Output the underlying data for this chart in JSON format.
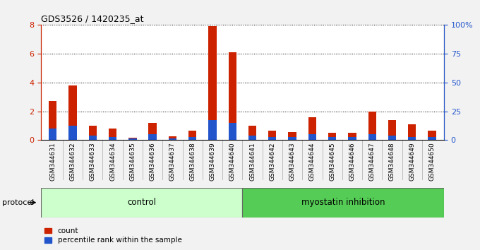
{
  "title": "GDS3526 / 1420235_at",
  "samples": [
    "GSM344631",
    "GSM344632",
    "GSM344633",
    "GSM344634",
    "GSM344635",
    "GSM344636",
    "GSM344637",
    "GSM344638",
    "GSM344639",
    "GSM344640",
    "GSM344641",
    "GSM344642",
    "GSM344643",
    "GSM344644",
    "GSM344645",
    "GSM344646",
    "GSM344647",
    "GSM344648",
    "GSM344649",
    "GSM344650"
  ],
  "count": [
    2.7,
    3.8,
    1.0,
    0.8,
    0.15,
    1.2,
    0.25,
    0.65,
    7.9,
    6.1,
    1.0,
    0.65,
    0.55,
    1.6,
    0.5,
    0.5,
    2.0,
    1.4,
    1.1,
    0.65
  ],
  "percentile": [
    0.8,
    1.0,
    0.3,
    0.2,
    0.1,
    0.4,
    0.1,
    0.2,
    1.4,
    1.2,
    0.3,
    0.2,
    0.2,
    0.4,
    0.2,
    0.2,
    0.4,
    0.3,
    0.2,
    0.2
  ],
  "count_color": "#cc2200",
  "percentile_color": "#2255cc",
  "control_count": 10,
  "myostatin_count": 10,
  "control_label": "control",
  "myostatin_label": "myostatin inhibition",
  "protocol_label": "protocol",
  "control_bg": "#ccffcc",
  "myostatin_bg": "#55cc55",
  "ylim_left": [
    0,
    8
  ],
  "yticks_left": [
    0,
    2,
    4,
    6,
    8
  ],
  "ylim_right": [
    0,
    100
  ],
  "yticks_right": [
    0,
    25,
    50,
    75,
    100
  ],
  "bar_width": 0.4,
  "fig_bg": "#f2f2f2",
  "plot_bg": "#ffffff",
  "xtick_bg": "#d0d0d0",
  "legend_count": "count",
  "legend_percentile": "percentile rank within the sample",
  "left_tick_color": "#cc2200",
  "right_tick_color": "#2255cc"
}
